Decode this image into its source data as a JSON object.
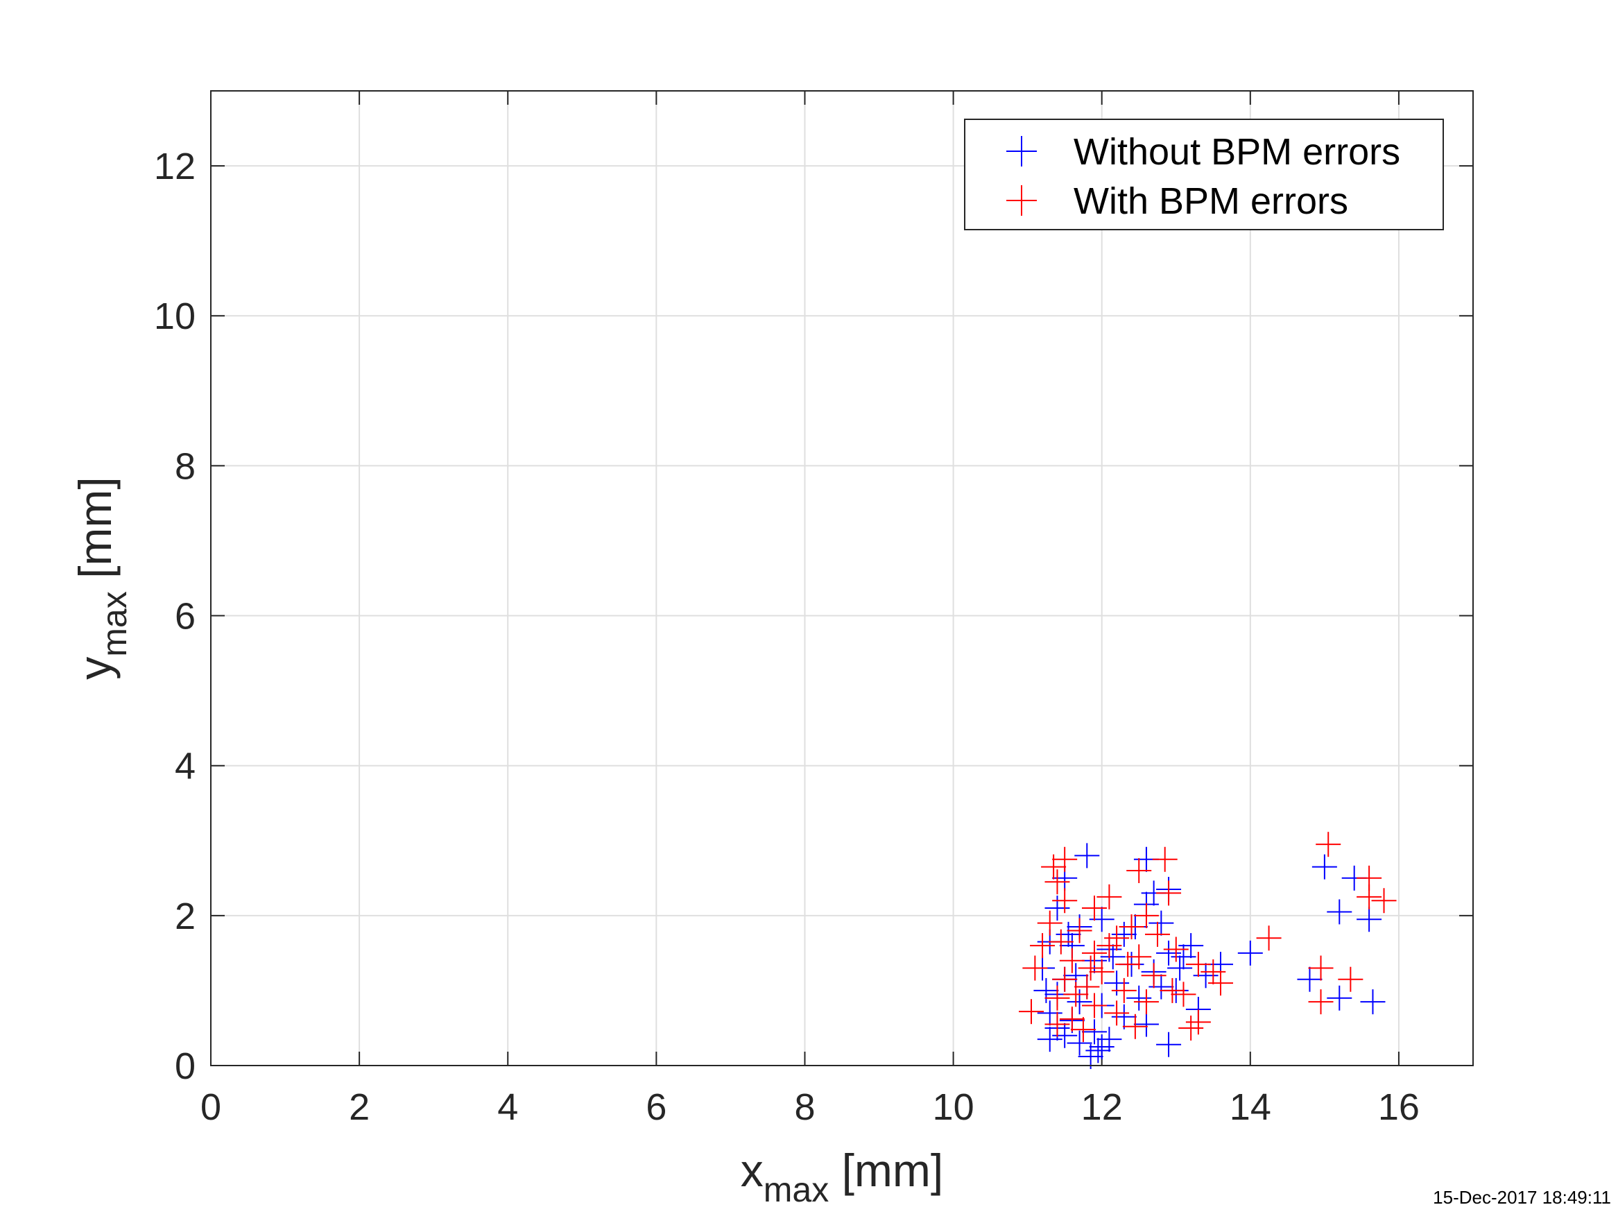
{
  "chart_data": {
    "type": "scatter",
    "xlabel": {
      "main": "x",
      "sub": "max",
      "unit": " [mm]"
    },
    "ylabel": {
      "main": "y",
      "sub": "max",
      "unit": " [mm]"
    },
    "xlim": [
      0,
      17
    ],
    "ylim": [
      0,
      13
    ],
    "xticks": [
      0,
      2,
      4,
      6,
      8,
      10,
      12,
      14,
      16
    ],
    "yticks": [
      0,
      2,
      4,
      6,
      8,
      10,
      12
    ],
    "grid": true,
    "marker": "+",
    "legend_position": "top-right",
    "series": [
      {
        "name": "Without BPM errors",
        "color": "#0000ff",
        "points": [
          [
            11.8,
            2.8
          ],
          [
            12.6,
            2.75
          ],
          [
            11.5,
            2.5
          ],
          [
            12.9,
            2.35
          ],
          [
            12.7,
            2.3
          ],
          [
            11.4,
            2.1
          ],
          [
            12.6,
            2.15
          ],
          [
            12.0,
            1.95
          ],
          [
            12.8,
            1.9
          ],
          [
            11.7,
            1.85
          ],
          [
            12.3,
            1.75
          ],
          [
            11.3,
            1.65
          ],
          [
            11.6,
            1.6
          ],
          [
            12.1,
            1.55
          ],
          [
            12.9,
            1.5
          ],
          [
            13.1,
            1.45
          ],
          [
            11.9,
            1.4
          ],
          [
            12.4,
            1.35
          ],
          [
            11.2,
            1.3
          ],
          [
            12.7,
            1.25
          ],
          [
            13.4,
            1.2
          ],
          [
            11.5,
            1.15
          ],
          [
            12.2,
            1.1
          ],
          [
            11.8,
            1.05
          ],
          [
            13.0,
            1.0
          ],
          [
            11.4,
            0.95
          ],
          [
            12.5,
            0.9
          ],
          [
            11.7,
            0.85
          ],
          [
            12.0,
            0.8
          ],
          [
            13.3,
            0.75
          ],
          [
            11.3,
            0.7
          ],
          [
            12.3,
            0.65
          ],
          [
            11.6,
            0.6
          ],
          [
            12.6,
            0.55
          ],
          [
            11.4,
            0.5
          ],
          [
            11.9,
            0.45
          ],
          [
            11.5,
            0.4
          ],
          [
            12.1,
            0.35
          ],
          [
            11.3,
            0.35
          ],
          [
            12.9,
            0.28
          ],
          [
            11.95,
            0.2
          ],
          [
            11.85,
            0.12
          ],
          [
            12.0,
            0.25
          ],
          [
            11.7,
            0.3
          ],
          [
            11.55,
            1.75
          ],
          [
            12.45,
            1.85
          ],
          [
            13.2,
            1.6
          ],
          [
            13.6,
            1.35
          ],
          [
            14.0,
            1.5
          ],
          [
            11.25,
            1.0
          ],
          [
            12.8,
            1.05
          ],
          [
            12.15,
            1.45
          ],
          [
            11.65,
            1.2
          ],
          [
            13.05,
            1.3
          ],
          [
            15.0,
            2.65
          ],
          [
            15.4,
            2.5
          ],
          [
            15.2,
            2.05
          ],
          [
            15.6,
            1.95
          ],
          [
            14.8,
            1.15
          ],
          [
            15.2,
            0.9
          ],
          [
            15.65,
            0.85
          ]
        ]
      },
      {
        "name": "With BPM errors",
        "color": "#ff0000",
        "points": [
          [
            11.5,
            2.75
          ],
          [
            12.85,
            2.75
          ],
          [
            12.5,
            2.6
          ],
          [
            11.4,
            2.45
          ],
          [
            12.9,
            2.3
          ],
          [
            12.1,
            2.25
          ],
          [
            11.5,
            2.2
          ],
          [
            11.9,
            2.1
          ],
          [
            12.6,
            2.0
          ],
          [
            11.3,
            1.9
          ],
          [
            12.4,
            1.85
          ],
          [
            11.7,
            1.8
          ],
          [
            12.2,
            1.7
          ],
          [
            11.2,
            1.6
          ],
          [
            13.0,
            1.55
          ],
          [
            11.9,
            1.5
          ],
          [
            12.5,
            1.45
          ],
          [
            11.6,
            1.4
          ],
          [
            13.3,
            1.35
          ],
          [
            11.1,
            1.3
          ],
          [
            12.0,
            1.25
          ],
          [
            12.7,
            1.2
          ],
          [
            11.5,
            1.15
          ],
          [
            13.6,
            1.1
          ],
          [
            11.8,
            1.05
          ],
          [
            12.3,
            1.0
          ],
          [
            13.1,
            0.95
          ],
          [
            11.4,
            0.9
          ],
          [
            12.6,
            0.85
          ],
          [
            11.9,
            0.8
          ],
          [
            11.05,
            0.72
          ],
          [
            12.2,
            0.7
          ],
          [
            11.6,
            0.62
          ],
          [
            13.3,
            0.58
          ],
          [
            11.4,
            0.55
          ],
          [
            12.45,
            0.52
          ],
          [
            11.75,
            0.48
          ],
          [
            13.2,
            0.5
          ],
          [
            11.45,
            1.65
          ],
          [
            12.75,
            1.75
          ],
          [
            14.25,
            1.7
          ],
          [
            11.35,
            2.65
          ],
          [
            12.1,
            1.6
          ],
          [
            11.85,
            1.3
          ],
          [
            12.95,
            1.0
          ],
          [
            13.5,
            1.25
          ],
          [
            11.65,
            0.95
          ],
          [
            12.35,
            1.35
          ],
          [
            15.05,
            2.95
          ],
          [
            15.6,
            2.5
          ],
          [
            15.8,
            2.2
          ],
          [
            15.6,
            2.25
          ],
          [
            14.95,
            1.3
          ],
          [
            15.35,
            1.15
          ],
          [
            14.95,
            0.85
          ]
        ]
      }
    ]
  },
  "timestamp": "15-Dec-2017 18:49:11"
}
